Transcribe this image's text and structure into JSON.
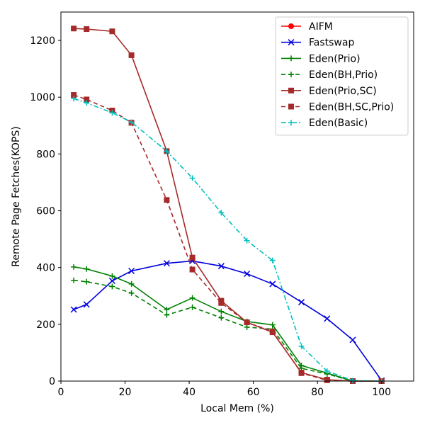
{
  "chart_data": {
    "type": "line",
    "xlabel": "Local Mem (%)",
    "ylabel": "Remote Page Fetches(KOPS)",
    "xlim": [
      0,
      110
    ],
    "ylim": [
      0,
      1300
    ],
    "xticks": [
      0,
      20,
      40,
      60,
      80,
      100
    ],
    "yticks": [
      0,
      200,
      400,
      600,
      800,
      1000,
      1200
    ],
    "grid": false,
    "legend_position": "top-right",
    "series": [
      {
        "name": "AIFM",
        "color": "#ff0000",
        "marker": "circle",
        "dash": "solid",
        "x": [],
        "y": []
      },
      {
        "name": "Fastswap",
        "color": "#0000dd",
        "marker": "x",
        "dash": "solid",
        "x": [
          4,
          8,
          16,
          22,
          33,
          41,
          50,
          58,
          66,
          75,
          83,
          91,
          100
        ],
        "y": [
          252,
          270,
          353,
          388,
          415,
          423,
          405,
          378,
          342,
          278,
          220,
          145,
          2
        ]
      },
      {
        "name": "Eden(Prio)",
        "color": "#008000",
        "marker": "plus",
        "dash": "solid",
        "x": [
          4,
          8,
          16,
          22,
          33,
          41,
          50,
          58,
          66,
          75,
          83,
          91,
          100
        ],
        "y": [
          402,
          395,
          370,
          342,
          252,
          293,
          245,
          210,
          198,
          55,
          28,
          0,
          0
        ]
      },
      {
        "name": "Eden(BH,Prio)",
        "color": "#008000",
        "marker": "plus",
        "dash": "dashed",
        "x": [
          4,
          8,
          16,
          22,
          33,
          41,
          50,
          58,
          66,
          75,
          83,
          91,
          100
        ],
        "y": [
          355,
          350,
          333,
          310,
          233,
          260,
          223,
          190,
          183,
          45,
          25,
          0,
          0
        ]
      },
      {
        "name": "Eden(Prio,SC)",
        "color": "#a52a2a",
        "marker": "square",
        "dash": "solid",
        "x": [
          4,
          8,
          16,
          22,
          33,
          41,
          50,
          58,
          66,
          75,
          83,
          91,
          100
        ],
        "y": [
          1242,
          1240,
          1232,
          1148,
          810,
          435,
          283,
          207,
          172,
          30,
          5,
          0,
          0
        ]
      },
      {
        "name": "Eden(BH,SC,Prio)",
        "color": "#a52a2a",
        "marker": "square",
        "dash": "dashed",
        "x": [
          4,
          8,
          16,
          22,
          33,
          41,
          50,
          58,
          66,
          75,
          83,
          91,
          100
        ],
        "y": [
          1008,
          992,
          953,
          910,
          638,
          393,
          275,
          207,
          175,
          28,
          3,
          0,
          0
        ]
      },
      {
        "name": "Eden(Basic)",
        "color": "#00bfbf",
        "marker": "plus",
        "dash": "dashdot",
        "x": [
          4,
          8,
          16,
          22,
          33,
          41,
          50,
          58,
          66,
          75,
          83,
          91,
          100
        ],
        "y": [
          995,
          980,
          945,
          912,
          810,
          715,
          593,
          495,
          425,
          123,
          35,
          2,
          0
        ]
      }
    ]
  }
}
